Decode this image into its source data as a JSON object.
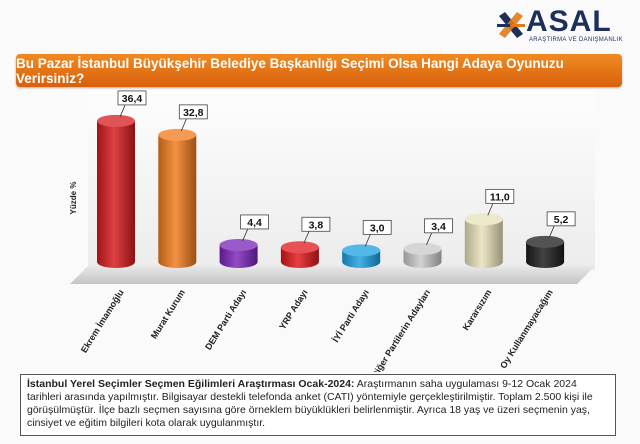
{
  "brand": {
    "name": "ASAL",
    "tagline": "ARAŞTIRMA VE DANIŞMANLIK"
  },
  "banner": {
    "title": "Bu Pazar İstanbul Büyükşehir Belediye Başkanlığı Seçimi Olsa Hangi Adaya Oyunuzu Verirsiniz?"
  },
  "chart_data": {
    "type": "bar",
    "title": "Bu Pazar İstanbul Büyükşehir Belediye Başkanlığı Seçimi Olsa Hangi Adaya Oyunuzu Verirsiniz?",
    "ylabel": "Yüzde %",
    "xlabel": "",
    "ylim": [
      0,
      40
    ],
    "grid": false,
    "categories": [
      "Ekrem İmamoğlu",
      "Murat Kurum",
      "DEM Parti Adayı",
      "YRP Adayı",
      "İYİ Parti Adayı",
      "Diğer Partilerin Adayları",
      "Kararsızım",
      "Oy Kullanmayacağım"
    ],
    "values": [
      36.4,
      32.8,
      4.4,
      3.8,
      3.0,
      3.4,
      11.0,
      5.2
    ],
    "value_labels": [
      "36,4",
      "32,8",
      "4,4",
      "3,8",
      "3,0",
      "3,4",
      "11,0",
      "5,2"
    ],
    "colors": [
      "#d7191b",
      "#f07a1a",
      "#7a23b8",
      "#e0151a",
      "#1aa0e0",
      "#c8c8c8",
      "#e6e0b8",
      "#1a1a1a"
    ]
  },
  "note": {
    "heading": "İstanbul Yerel Seçimler Seçmen Eğilimleri Araştırması Ocak-2024:",
    "body": "Araştırmanın saha uygulaması 9-12 Ocak 2024 tarihleri arasında yapılmıştır. Bilgisayar destekli telefonda anket (CATI) yöntemiyle gerçekleştirilmiştir. Toplam 2.500 kişi ile görüşülmüştür. İlçe bazlı seçmen sayısına göre örneklem büyüklükleri belirlenmiştir. Ayrıca 18 yaş ve üzeri seçmenin yaş, cinsiyet ve eğitim bilgileri kota olarak uygulanmıştır."
  }
}
